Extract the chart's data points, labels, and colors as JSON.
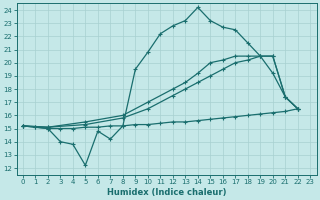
{
  "xlabel": "Humidex (Indice chaleur)",
  "bg_color": "#c5e8e8",
  "line_color": "#1a6e6e",
  "grid_color": "#a8d0d0",
  "xlim": [
    -0.5,
    23.5
  ],
  "ylim": [
    11.5,
    24.5
  ],
  "xticks": [
    0,
    1,
    2,
    3,
    4,
    5,
    6,
    7,
    8,
    9,
    10,
    11,
    12,
    13,
    14,
    15,
    16,
    17,
    18,
    19,
    20,
    21,
    22,
    23
  ],
  "yticks": [
    12,
    13,
    14,
    15,
    16,
    17,
    18,
    19,
    20,
    21,
    22,
    23,
    24
  ],
  "line_spike": [
    [
      0,
      15.2
    ],
    [
      1,
      15.1
    ],
    [
      2,
      15.0
    ],
    [
      3,
      14.0
    ],
    [
      4,
      13.8
    ],
    [
      5,
      12.2
    ],
    [
      6,
      14.8
    ],
    [
      7,
      14.2
    ],
    [
      8,
      15.2
    ],
    [
      9,
      19.5
    ],
    [
      10,
      20.8
    ],
    [
      11,
      22.2
    ],
    [
      12,
      22.8
    ],
    [
      13,
      23.2
    ],
    [
      14,
      24.2
    ],
    [
      15,
      23.2
    ],
    [
      16,
      22.7
    ],
    [
      17,
      22.5
    ],
    [
      18,
      21.5
    ],
    [
      19,
      20.5
    ],
    [
      20,
      19.2
    ],
    [
      21,
      17.4
    ],
    [
      22,
      16.5
    ]
  ],
  "line_upper": [
    [
      0,
      15.2
    ],
    [
      2,
      15.1
    ],
    [
      5,
      15.5
    ],
    [
      8,
      16.0
    ],
    [
      10,
      17.0
    ],
    [
      12,
      18.0
    ],
    [
      13,
      18.5
    ],
    [
      14,
      19.2
    ],
    [
      15,
      20.0
    ],
    [
      16,
      20.2
    ],
    [
      17,
      20.5
    ],
    [
      18,
      20.5
    ],
    [
      19,
      20.5
    ],
    [
      20,
      20.5
    ],
    [
      21,
      17.4
    ],
    [
      22,
      16.5
    ]
  ],
  "line_mid": [
    [
      0,
      15.2
    ],
    [
      2,
      15.1
    ],
    [
      5,
      15.3
    ],
    [
      8,
      15.8
    ],
    [
      10,
      16.5
    ],
    [
      12,
      17.5
    ],
    [
      13,
      18.0
    ],
    [
      14,
      18.5
    ],
    [
      15,
      19.0
    ],
    [
      16,
      19.5
    ],
    [
      17,
      20.0
    ],
    [
      18,
      20.2
    ],
    [
      19,
      20.5
    ],
    [
      20,
      20.5
    ],
    [
      21,
      17.4
    ],
    [
      22,
      16.5
    ]
  ],
  "line_flat": [
    [
      0,
      15.2
    ],
    [
      1,
      15.1
    ],
    [
      2,
      15.0
    ],
    [
      3,
      15.0
    ],
    [
      4,
      15.0
    ],
    [
      5,
      15.1
    ],
    [
      6,
      15.1
    ],
    [
      7,
      15.2
    ],
    [
      8,
      15.2
    ],
    [
      9,
      15.3
    ],
    [
      10,
      15.3
    ],
    [
      11,
      15.4
    ],
    [
      12,
      15.5
    ],
    [
      13,
      15.5
    ],
    [
      14,
      15.6
    ],
    [
      15,
      15.7
    ],
    [
      16,
      15.8
    ],
    [
      17,
      15.9
    ],
    [
      18,
      16.0
    ],
    [
      19,
      16.1
    ],
    [
      20,
      16.2
    ],
    [
      21,
      16.3
    ],
    [
      22,
      16.5
    ]
  ]
}
